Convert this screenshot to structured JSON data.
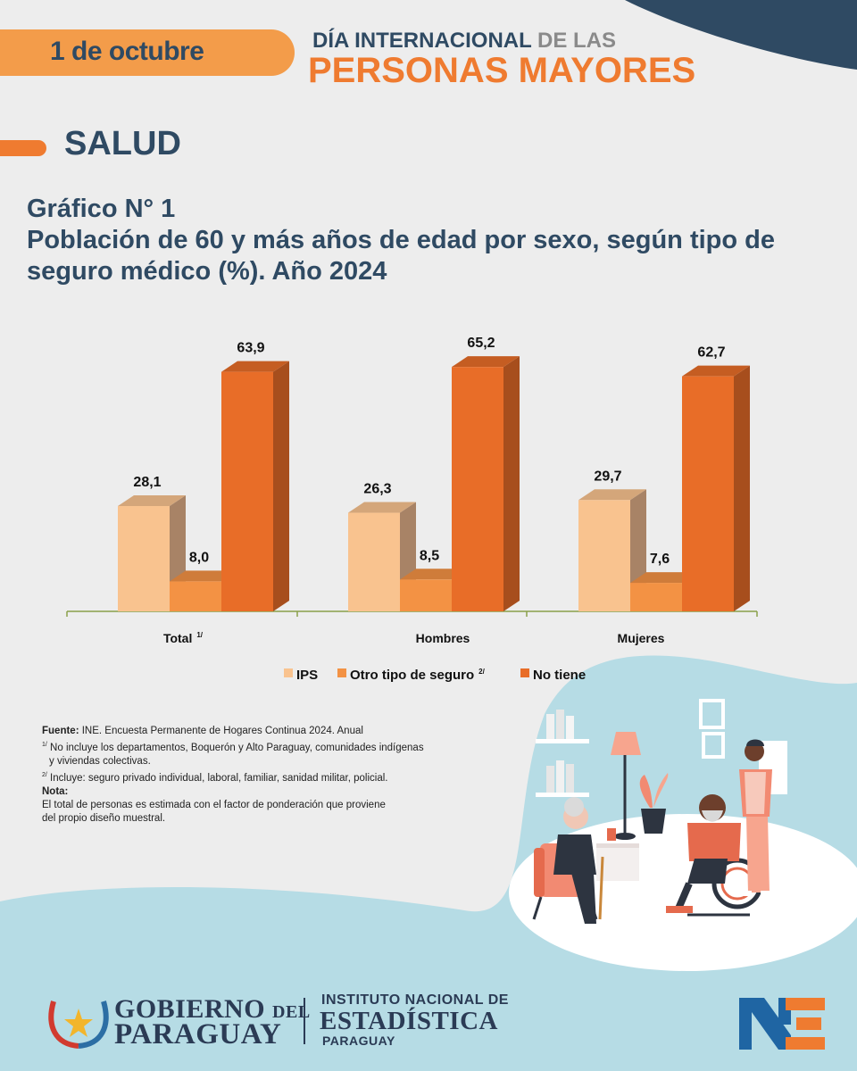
{
  "header": {
    "date": "1 de octubre",
    "line1_a": "DÍA INTERNACIONAL",
    "line1_b": "DE LAS",
    "line2": "PERSONAS MAYORES"
  },
  "section": "SALUD",
  "chart_title": {
    "line1": "Gráfico N° 1",
    "line2": "Población  de 60 y más años de edad por sexo, según tipo de",
    "line3": "seguro médico (%). Año 2024"
  },
  "chart_data": {
    "type": "bar",
    "categories": [
      "Total",
      "Hombres",
      "Mujeres"
    ],
    "category_sup": [
      "1/",
      "",
      ""
    ],
    "series": [
      {
        "name": "IPS",
        "values": [
          28.1,
          26.3,
          29.7
        ],
        "labels": [
          "28,1",
          "26,3",
          "29,7"
        ],
        "color": "#f9c38f"
      },
      {
        "name": "Otro tipo de seguro",
        "name_sup": "2/",
        "values": [
          8.0,
          8.5,
          7.6
        ],
        "labels": [
          "8,0",
          "8,5",
          "7,6"
        ],
        "color": "#f39244"
      },
      {
        "name": "No tiene",
        "values": [
          63.9,
          65.2,
          62.7
        ],
        "labels": [
          "63,9",
          "65,2",
          "62,7"
        ],
        "color": "#e86d28"
      }
    ],
    "legend_position": "bottom",
    "style": "3d",
    "grid": false
  },
  "notes": {
    "fuente_label": "Fuente:",
    "fuente_text": "INE. Encuesta Permanente de Hogares Continua 2024. Anual",
    "n1_sup": "1/",
    "n1_line1": "No incluye los departamentos, Boquerón y Alto Paraguay, comunidades indígenas",
    "n1_line2": "y viviendas colectivas.",
    "n2_sup": "2/",
    "n2_text": "Incluye: seguro privado individual, laboral, familiar, sanidad militar, policial.",
    "nota_label": "Nota:",
    "nota_line1": "El total de personas es estimada con el factor de ponderación que proviene",
    "nota_line2": "del propio diseño muestral."
  },
  "footer": {
    "gob_line1": "GOBIERNO",
    "gob_del": "DEL",
    "gob_line2": "PARAGUAY",
    "ine_line1": "INSTITUTO NACIONAL DE",
    "ine_line2": "ESTADÍSTICA",
    "ine_line3": "PARAGUAY"
  },
  "colors": {
    "navy": "#2f4a63",
    "orange": "#ef7b30",
    "light_orange": "#f39c4a",
    "background": "#ededed",
    "light_blue": "#b6dce5"
  }
}
